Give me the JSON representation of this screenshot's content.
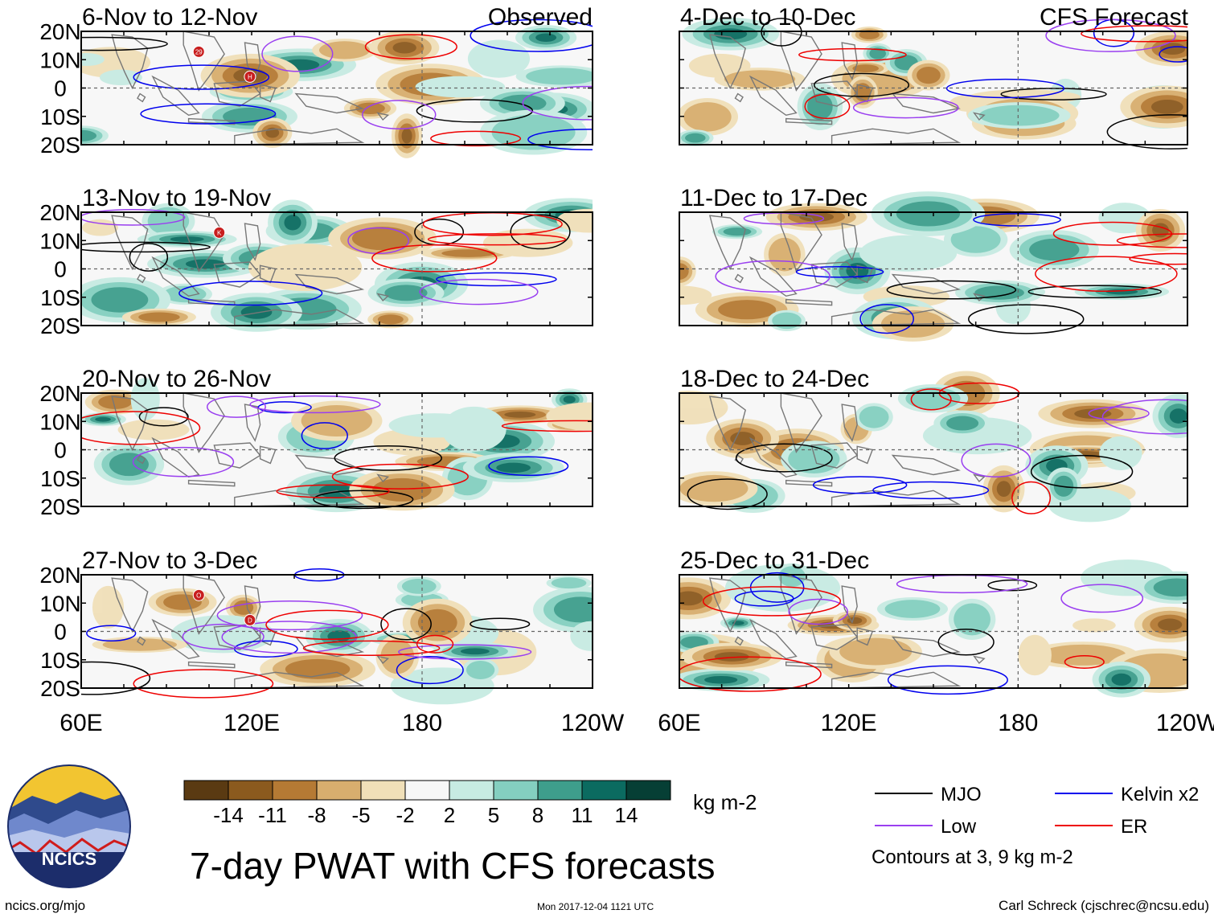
{
  "figure": {
    "title": "7-day PWAT with CFS forecasts",
    "units": "kg m-2",
    "left_column_label": "Observed",
    "right_column_label": "CFS Forecast",
    "site": "ncics.org/mjo",
    "timestamp": "Mon 2017-12-04 1121 UTC",
    "author": "Carl Schreck (cjschrec@ncsu.edu)",
    "logo_text": "NCICS",
    "contours_note": "Contours at 3, 9 kg m-2"
  },
  "chart_data": {
    "type": "heatmap",
    "variable": "7-day precipitable water (PWAT) anomaly",
    "xlim": [
      "60E",
      "120W"
    ],
    "ylim": [
      "20S",
      "20N"
    ],
    "x_ticks": [
      "60E",
      "120E",
      "180",
      "120W"
    ],
    "y_ticks": [
      "20N",
      "10N",
      "0",
      "10S",
      "20S"
    ],
    "panels": [
      {
        "title": "6-Nov to 12-Nov",
        "source": "Observed",
        "storms": [
          "29",
          "H"
        ]
      },
      {
        "title": "13-Nov to 19-Nov",
        "source": "Observed",
        "storms": [
          "K"
        ]
      },
      {
        "title": "20-Nov to 26-Nov",
        "source": "Observed",
        "storms": []
      },
      {
        "title": "27-Nov to 3-Dec",
        "source": "Observed",
        "storms": [
          "O",
          "D"
        ]
      },
      {
        "title": "4-Dec to 10-Dec",
        "source": "CFS Forecast",
        "storms": []
      },
      {
        "title": "11-Dec to 17-Dec",
        "source": "CFS Forecast",
        "storms": []
      },
      {
        "title": "18-Dec to 24-Dec",
        "source": "CFS Forecast",
        "storms": []
      },
      {
        "title": "25-Dec to 31-Dec",
        "source": "CFS Forecast",
        "storms": []
      }
    ],
    "colorbar": {
      "labels": [
        "-14",
        "-11",
        "-8",
        "-5",
        "-2",
        "2",
        "5",
        "8",
        "11",
        "14"
      ],
      "colors": [
        "#5a3a12",
        "#8b5a1e",
        "#b57a34",
        "#d8ae6e",
        "#f0dfb8",
        "#f7f7f7",
        "#c7ebe2",
        "#84cfc0",
        "#3e9e8c",
        "#0b6b60",
        "#063f35"
      ]
    },
    "legend": [
      {
        "label": "MJO",
        "color": "#000000"
      },
      {
        "label": "Kelvin x2",
        "color": "#0000ee"
      },
      {
        "label": "Low",
        "color": "#9a3ff0"
      },
      {
        "label": "ER",
        "color": "#ee0000"
      }
    ]
  }
}
